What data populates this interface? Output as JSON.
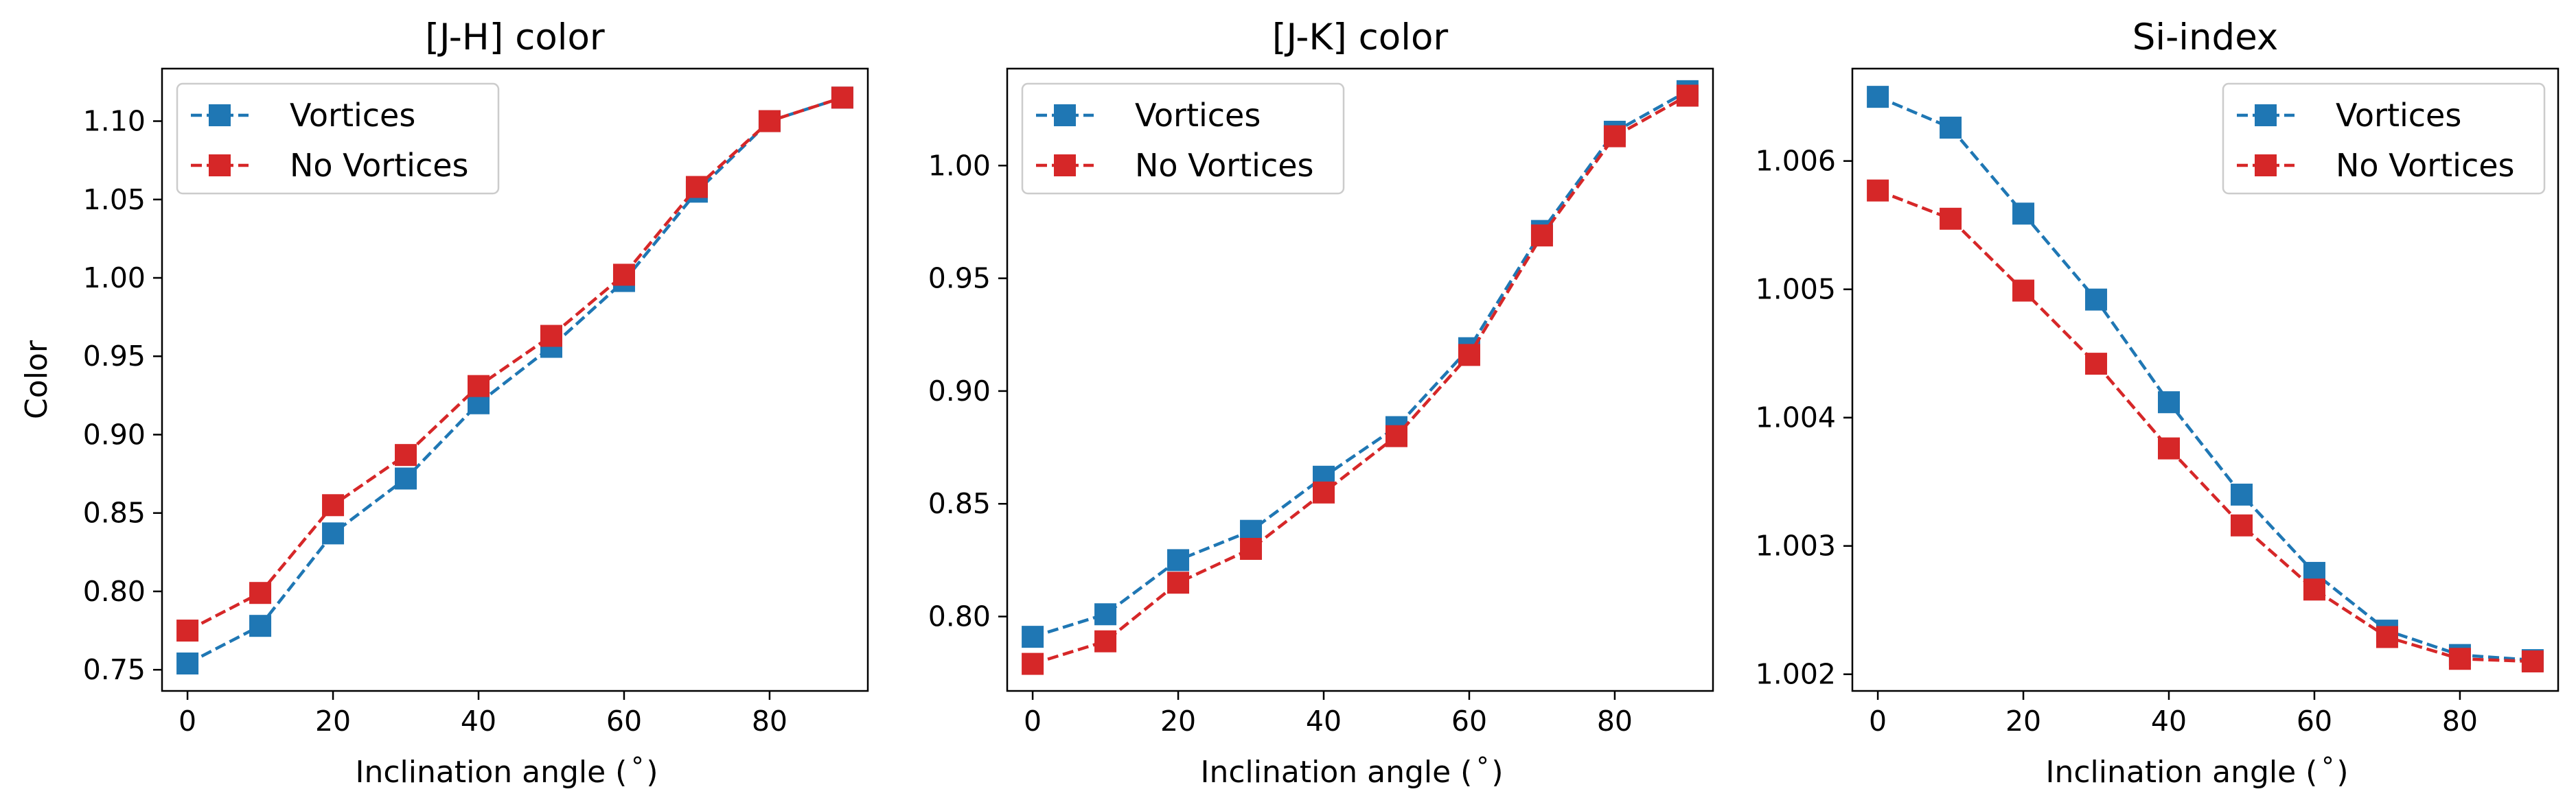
{
  "chart_data": [
    {
      "type": "line",
      "title": "[J-H] color",
      "xlabel": "Inclination angle ($^\\circ$)",
      "xlabel_text": "Inclination angle (",
      "xlabel_suffix": ")",
      "ylabel": "Color",
      "x": [
        0,
        10,
        20,
        30,
        40,
        50,
        60,
        70,
        80,
        90
      ],
      "xlim": [
        -3.5,
        93.5
      ],
      "ylim": [
        0.7365,
        1.1335
      ],
      "xticks": [
        0,
        20,
        40,
        60,
        80
      ],
      "yticks": [
        0.75,
        0.8,
        0.85,
        0.9,
        0.95,
        1.0,
        1.05,
        1.1
      ],
      "ytick_labels": [
        "0.75",
        "0.80",
        "0.85",
        "0.90",
        "0.95",
        "1.00",
        "1.05",
        "1.10"
      ],
      "legend_position": "upper left",
      "series": [
        {
          "name": "Vortices",
          "color": "#1f77b4",
          "values": [
            0.754,
            0.778,
            0.837,
            0.872,
            0.92,
            0.956,
            0.998,
            1.055,
            1.1,
            1.115
          ]
        },
        {
          "name": "No Vortices",
          "color": "#d62728",
          "values": [
            0.775,
            0.799,
            0.855,
            0.887,
            0.931,
            0.963,
            1.002,
            1.058,
            1.1,
            1.115
          ]
        }
      ]
    },
    {
      "type": "line",
      "title": "[J-K] color",
      "xlabel": "Inclination angle ($^\\circ$)",
      "xlabel_text": "Inclination angle (",
      "xlabel_suffix": ")",
      "ylabel": "",
      "x": [
        0,
        10,
        20,
        30,
        40,
        50,
        60,
        70,
        80,
        90
      ],
      "xlim": [
        -3.5,
        93.5
      ],
      "ylim": [
        0.767,
        1.043
      ],
      "xticks": [
        0,
        20,
        40,
        60,
        80
      ],
      "yticks": [
        0.8,
        0.85,
        0.9,
        0.95,
        1.0
      ],
      "ytick_labels": [
        "0.80",
        "0.85",
        "0.90",
        "0.95",
        "1.00"
      ],
      "legend_position": "upper left",
      "series": [
        {
          "name": "Vortices",
          "color": "#1f77b4",
          "values": [
            0.791,
            0.801,
            0.825,
            0.838,
            0.862,
            0.884,
            0.919,
            0.971,
            1.015,
            1.033
          ]
        },
        {
          "name": "No Vortices",
          "color": "#d62728",
          "values": [
            0.779,
            0.789,
            0.815,
            0.83,
            0.855,
            0.88,
            0.916,
            0.969,
            1.013,
            1.031
          ]
        }
      ]
    },
    {
      "type": "line",
      "title": "Si-index",
      "xlabel": "Inclination angle ($^\\circ$)",
      "xlabel_text": "Inclination angle (",
      "xlabel_suffix": ")",
      "ylabel": "",
      "x": [
        0,
        10,
        20,
        30,
        40,
        50,
        60,
        70,
        80,
        90
      ],
      "xlim": [
        -3.5,
        93.5
      ],
      "ylim": [
        1.00187,
        1.00672
      ],
      "xticks": [
        0,
        20,
        40,
        60,
        80
      ],
      "yticks": [
        1.002,
        1.003,
        1.004,
        1.005,
        1.006
      ],
      "ytick_labels": [
        "1.002",
        "1.003",
        "1.004",
        "1.005",
        "1.006"
      ],
      "legend_position": "upper right",
      "series": [
        {
          "name": "Vortices",
          "color": "#1f77b4",
          "values": [
            1.0065,
            1.00626,
            1.00559,
            1.00492,
            1.00412,
            1.0034,
            1.00279,
            1.00234,
            1.00215,
            1.00211
          ]
        },
        {
          "name": "No Vortices",
          "color": "#d62728",
          "values": [
            1.00577,
            1.00555,
            1.00499,
            1.00442,
            1.00376,
            1.00316,
            1.00266,
            1.00229,
            1.00212,
            1.0021
          ]
        }
      ]
    }
  ]
}
